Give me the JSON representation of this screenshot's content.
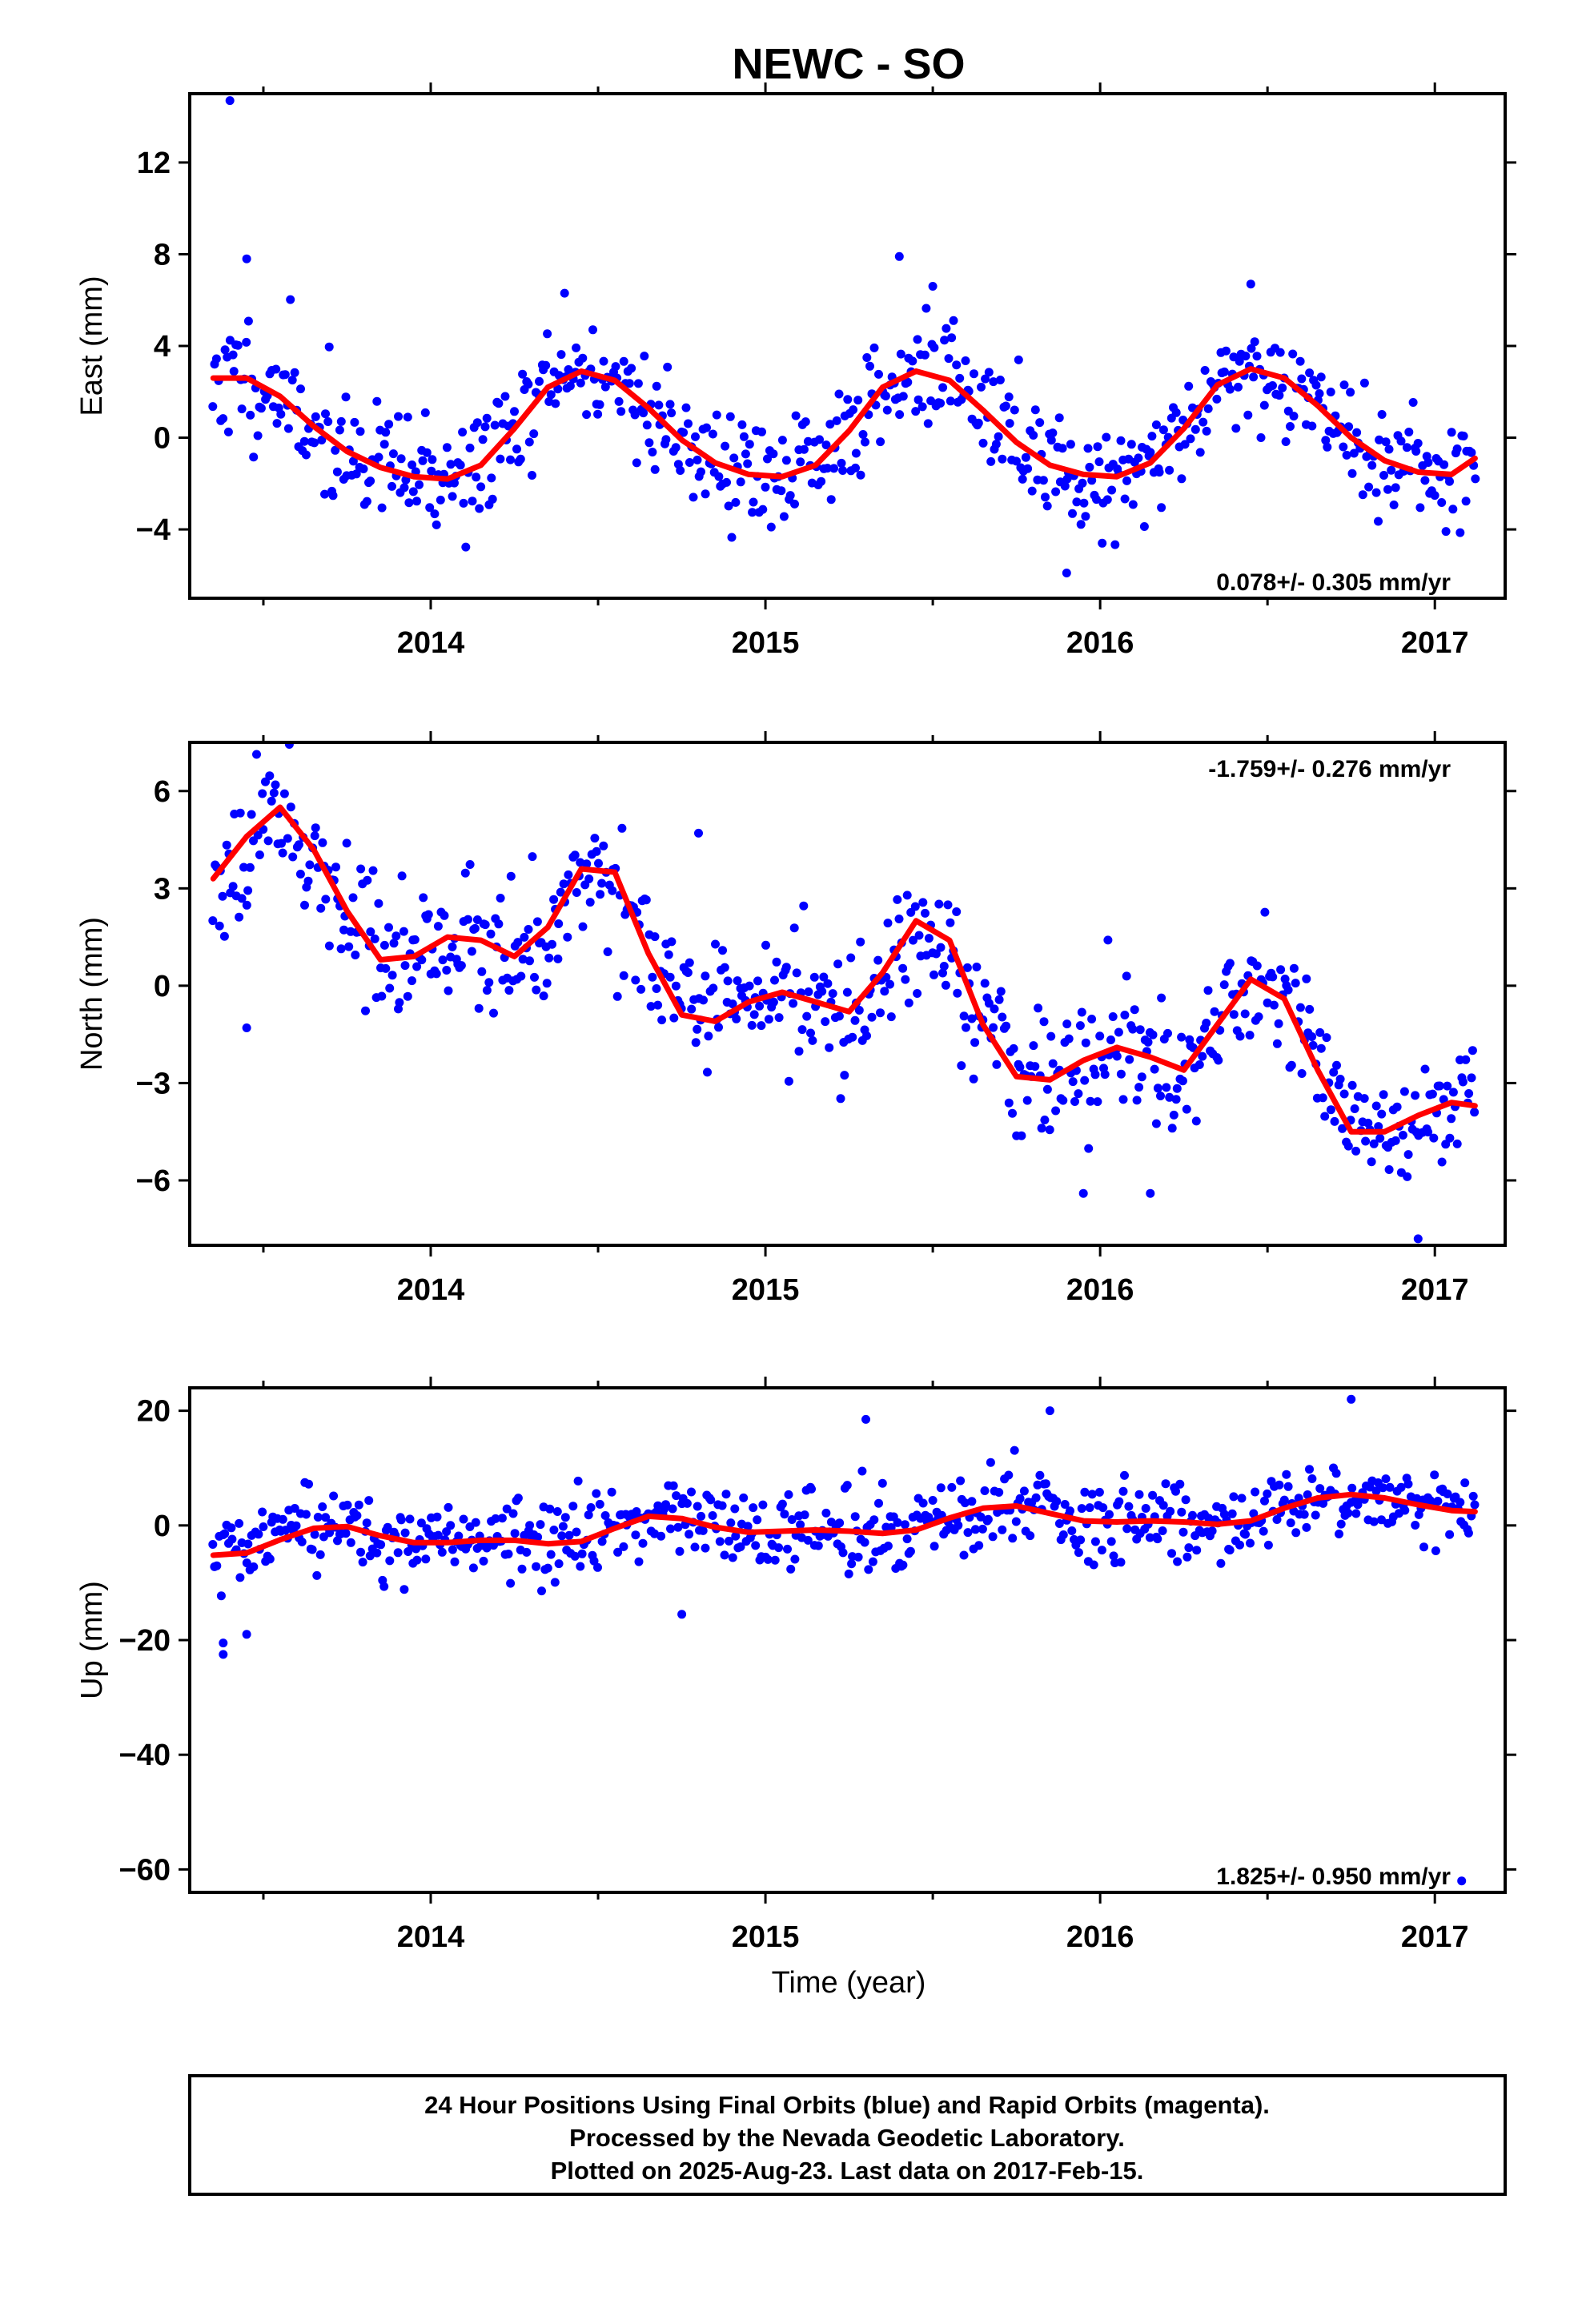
{
  "chart_data": {
    "type": "scatter",
    "title": "NEWC - SO",
    "xlabel": "Time (year)",
    "x_tick_labels": [
      "2014",
      "2015",
      "2016",
      "2017"
    ],
    "x_ticks": [
      2014,
      2015,
      2016,
      2017
    ],
    "xlim": [
      2013.28,
      2017.21
    ],
    "colors": {
      "points": "#0000ff",
      "fit": "#ff0000",
      "frame": "#000000"
    },
    "panels": [
      {
        "ylabel": "East (mm)",
        "ylim": [
          -7,
          15
        ],
        "y_ticks": [
          -4,
          0,
          4,
          8,
          12
        ],
        "y_tick_labels": [
          "−4",
          "0",
          "4",
          "8",
          "12"
        ],
        "rate_text": "0.078+/- 0.305 mm/yr",
        "rate_position": "bottom-right",
        "fit": {
          "x": [
            2013.35,
            2013.45,
            2013.55,
            2013.65,
            2013.75,
            2013.85,
            2013.95,
            2014.05,
            2014.15,
            2014.25,
            2014.35,
            2014.45,
            2014.55,
            2014.65,
            2014.75,
            2014.85,
            2014.95,
            2015.05,
            2015.15,
            2015.25,
            2015.35,
            2015.45,
            2015.55,
            2015.65,
            2015.75,
            2015.85,
            2015.95,
            2016.05,
            2016.15,
            2016.25,
            2016.35,
            2016.45,
            2016.55,
            2016.65,
            2016.75,
            2016.85,
            2016.95,
            2017.05,
            2017.12
          ],
          "y": [
            2.6,
            2.6,
            1.8,
            0.5,
            -0.6,
            -1.3,
            -1.7,
            -1.8,
            -1.2,
            0.4,
            2.2,
            2.9,
            2.5,
            1.3,
            -0.1,
            -1.1,
            -1.6,
            -1.7,
            -1.2,
            0.3,
            2.2,
            2.9,
            2.5,
            1.2,
            -0.2,
            -1.2,
            -1.6,
            -1.7,
            -1.1,
            0.4,
            2.3,
            3.0,
            2.6,
            1.4,
            0.0,
            -1.0,
            -1.5,
            -1.6,
            -0.9
          ]
        },
        "scatter": {
          "n": 650,
          "seed": 11,
          "spread": 1.3,
          "outliers_x": [
            2013.4,
            2013.45,
            2014.4,
            2015.4,
            2015.5,
            2015.9,
            2016.45
          ],
          "outliers_y": [
            14.7,
            7.8,
            6.3,
            7.9,
            6.6,
            -5.9,
            6.7
          ]
        }
      },
      {
        "ylabel": "North (mm)",
        "ylim": [
          -8,
          7.5
        ],
        "y_ticks": [
          -6,
          -3,
          0,
          3,
          6
        ],
        "y_tick_labels": [
          "−6",
          "−3",
          "0",
          "3",
          "6"
        ],
        "rate_text": "-1.759+/- 0.276 mm/yr",
        "rate_position": "top-right",
        "fit": {
          "x": [
            2013.35,
            2013.45,
            2013.55,
            2013.65,
            2013.75,
            2013.85,
            2013.95,
            2014.05,
            2014.15,
            2014.25,
            2014.35,
            2014.45,
            2014.55,
            2014.65,
            2014.75,
            2014.85,
            2014.95,
            2015.05,
            2015.15,
            2015.25,
            2015.35,
            2015.45,
            2015.55,
            2015.65,
            2015.75,
            2015.85,
            2015.95,
            2016.05,
            2016.15,
            2016.25,
            2016.35,
            2016.45,
            2016.55,
            2016.65,
            2016.75,
            2016.85,
            2016.95,
            2017.05,
            2017.12
          ],
          "y": [
            3.3,
            4.6,
            5.5,
            4.2,
            2.3,
            0.8,
            0.9,
            1.5,
            1.4,
            0.9,
            1.8,
            3.6,
            3.5,
            1.0,
            -0.9,
            -1.1,
            -0.5,
            -0.2,
            -0.5,
            -0.8,
            0.4,
            2.0,
            1.4,
            -1.2,
            -2.8,
            -2.9,
            -2.3,
            -1.9,
            -2.2,
            -2.6,
            -1.2,
            0.2,
            -0.4,
            -2.6,
            -4.5,
            -4.5,
            -4.0,
            -3.6,
            -3.7
          ]
        },
        "scatter": {
          "n": 650,
          "seed": 23,
          "spread": 1.0,
          "outliers_x": [
            2013.45,
            2014.8,
            2015.95,
            2016.15,
            2016.95
          ],
          "outliers_y": [
            -1.3,
            4.7,
            -6.4,
            -6.4,
            -7.8
          ]
        }
      },
      {
        "ylabel": "Up (mm)",
        "ylim": [
          -64,
          24
        ],
        "y_ticks": [
          -60,
          -40,
          -20,
          0,
          20
        ],
        "y_tick_labels": [
          "−60",
          "−40",
          "−20",
          "0",
          "20"
        ],
        "rate_text": "1.825+/- 0.950 mm/yr",
        "rate_position": "bottom-right",
        "fit": {
          "x": [
            2013.35,
            2013.45,
            2013.55,
            2013.65,
            2013.75,
            2013.85,
            2013.95,
            2014.05,
            2014.15,
            2014.25,
            2014.35,
            2014.45,
            2014.55,
            2014.65,
            2014.75,
            2014.85,
            2014.95,
            2015.05,
            2015.15,
            2015.25,
            2015.35,
            2015.45,
            2015.55,
            2015.65,
            2015.75,
            2015.85,
            2015.95,
            2016.05,
            2016.15,
            2016.25,
            2016.35,
            2016.45,
            2016.55,
            2016.65,
            2016.75,
            2016.85,
            2016.95,
            2017.05,
            2017.12
          ],
          "y": [
            -5.2,
            -4.8,
            -2.5,
            -0.5,
            -0.2,
            -1.8,
            -3.0,
            -3.0,
            -2.6,
            -2.6,
            -3.2,
            -2.8,
            -0.5,
            1.6,
            1.2,
            -0.3,
            -1.2,
            -1.0,
            -0.8,
            -1.0,
            -1.4,
            -0.8,
            1.3,
            3.0,
            3.4,
            2.1,
            0.8,
            0.6,
            0.8,
            0.6,
            0.2,
            0.8,
            3.0,
            4.8,
            5.4,
            4.8,
            3.6,
            2.6,
            2.4
          ]
        },
        "scatter": {
          "n": 650,
          "seed": 37,
          "spread": 3.5,
          "outliers_x": [
            2013.38,
            2013.38,
            2013.45,
            2014.75,
            2015.3,
            2015.85,
            2016.75,
            2017.08
          ],
          "outliers_y": [
            -22.5,
            -20.5,
            -19.0,
            -15.5,
            18.5,
            20.0,
            22.0,
            -62.0
          ]
        }
      }
    ]
  },
  "footer": {
    "line1": "24 Hour Positions Using Final Orbits (blue) and Rapid Orbits (magenta).",
    "line2": "Processed by the Nevada Geodetic Laboratory.",
    "line3": "Plotted on 2025-Aug-23. Last data on 2017-Feb-15."
  }
}
